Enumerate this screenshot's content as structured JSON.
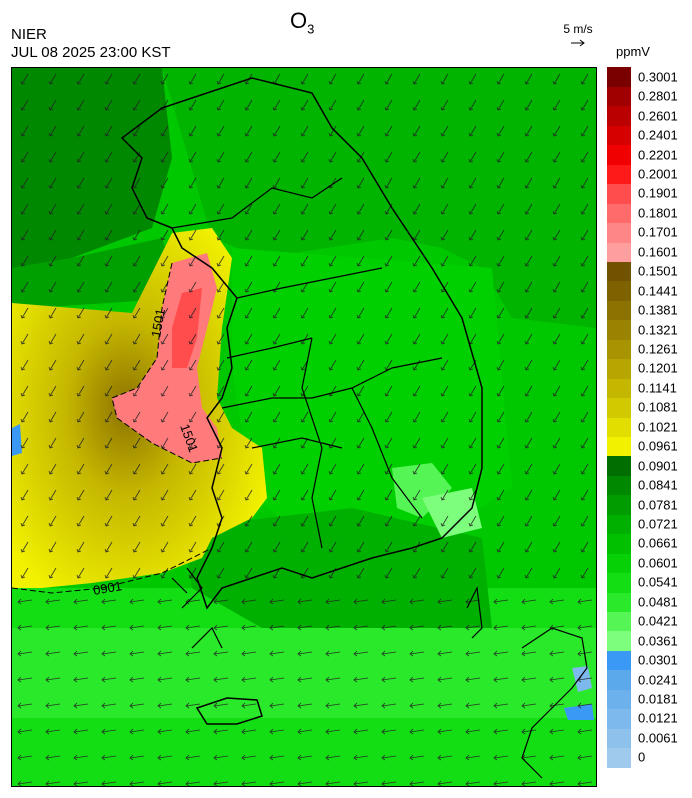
{
  "header": {
    "title": "O",
    "title_sub": "3",
    "org": "NIER",
    "datetime": "JUL 08 2025 23:00 KST",
    "wind_scale_label": "5 m/s",
    "unit": "ppmV"
  },
  "contour_labels": [
    "1501",
    "1501",
    "0901"
  ],
  "legend": {
    "colors": [
      "#9fcaed",
      "#8ec2ec",
      "#7db9ec",
      "#6cb1eb",
      "#5ba8ea",
      "#3a99f5",
      "#7dff7d",
      "#55f555",
      "#2ae82a",
      "#13dd13",
      "#06d006",
      "#00c000",
      "#00b000",
      "#009c00",
      "#008800",
      "#006e00",
      "#f2f200",
      "#e2de00",
      "#d3c900",
      "#c5b700",
      "#b8a600",
      "#a89400",
      "#9a8300",
      "#8c7200",
      "#7e6200",
      "#705200",
      "#ff9e9e",
      "#ff8686",
      "#ff6a6a",
      "#ff4c4c",
      "#ff1a1a",
      "#f00000",
      "#d60000",
      "#bb0000",
      "#a00000",
      "#7a0000"
    ],
    "ticks": [
      "0",
      "0.0061",
      "0.0121",
      "0.0181",
      "0.0241",
      "0.0301",
      "0.0361",
      "0.0421",
      "0.0481",
      "0.0541",
      "0.0601",
      "0.0661",
      "0.0721",
      "0.0781",
      "0.0841",
      "0.0901",
      "0.0961",
      "0.1021",
      "0.1081",
      "0.1141",
      "0.1201",
      "0.1261",
      "0.1321",
      "0.1381",
      "0.1441",
      "0.1501",
      "0.1601",
      "0.1701",
      "0.1801",
      "0.1901",
      "0.2001",
      "0.2201",
      "0.2401",
      "0.2601",
      "0.2801",
      "0.3001"
    ]
  }
}
